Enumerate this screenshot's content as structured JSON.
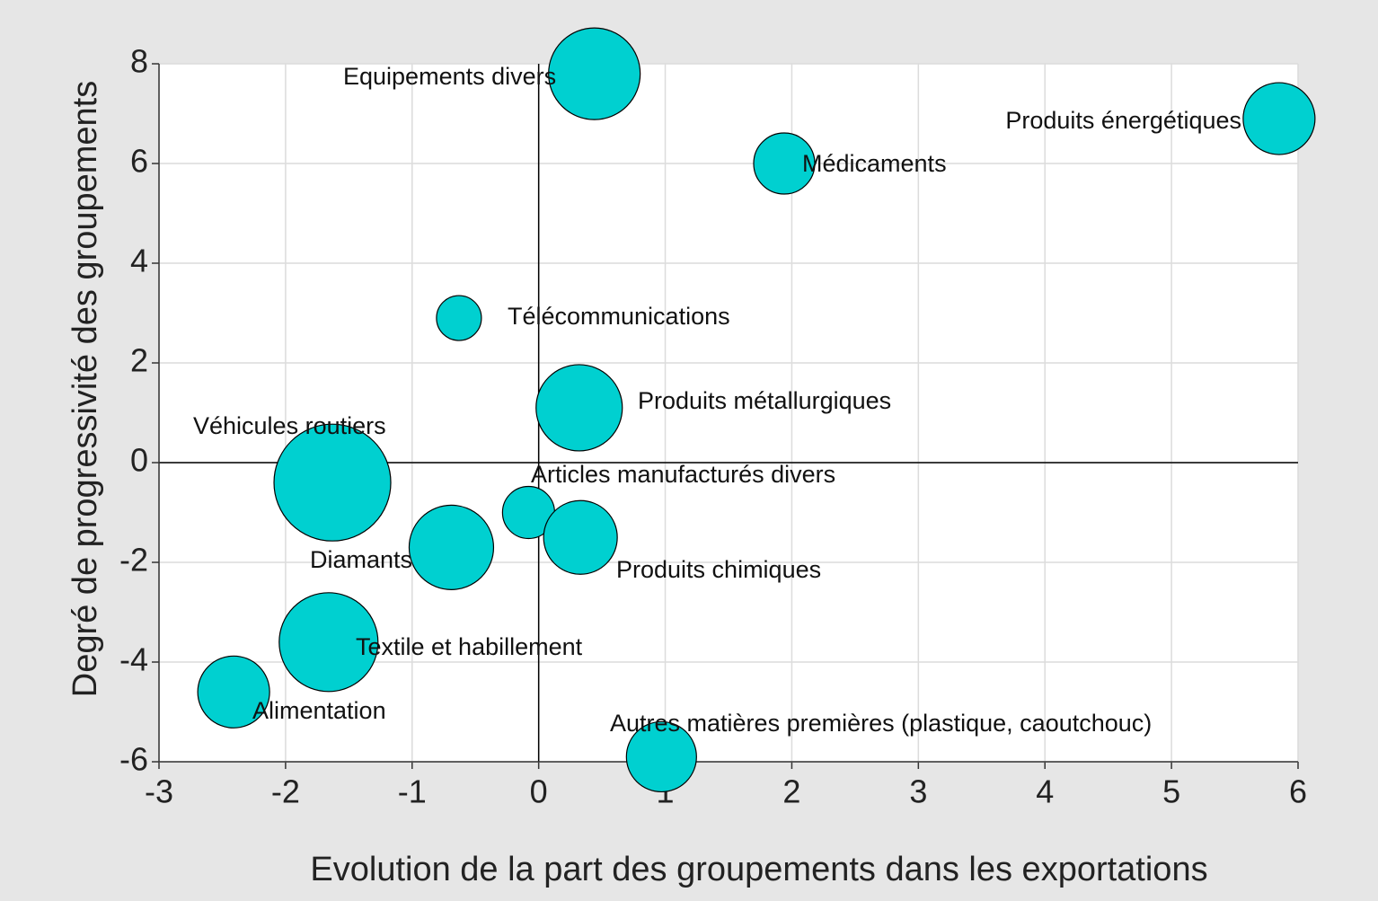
{
  "chart_data": {
    "type": "bubble",
    "x_label": "Evolution de la part des groupements dans les exportations",
    "y_label": "Degré de progressivité des groupements",
    "labels": [
      "Equipements divers",
      "Produits énergétiques",
      "Médicaments",
      "Télécommunications",
      "Produits métallurgiques",
      "Véhicules routiers",
      "Articles manufacturés divers",
      "Produits chimiques",
      "Diamants",
      "Textile et habillement",
      "Alimentation",
      "Autres matières premières (plastique, caoutchouc)"
    ],
    "x": [
      0.44,
      5.85,
      1.94,
      -0.63,
      0.32,
      -1.63,
      -0.08,
      0.33,
      -0.69,
      -1.66,
      -2.41,
      0.97
    ],
    "values": [
      7.8,
      6.9,
      6.0,
      2.9,
      1.1,
      -0.4,
      -1.0,
      -1.5,
      -1.7,
      -3.6,
      -4.6,
      -5.9
    ],
    "sizes": [
      51,
      40,
      34,
      25,
      48,
      65,
      29,
      41,
      47,
      55,
      40,
      39
    ],
    "color": "#00d0d0",
    "xlim": [
      -3,
      6
    ],
    "xticks": [
      -3,
      -2,
      -1,
      0,
      1,
      2,
      3,
      4,
      5,
      6
    ],
    "ylim": [
      -6,
      8
    ],
    "yticks": [
      -6,
      -4,
      -2,
      0,
      2,
      4,
      6,
      8
    ],
    "grid": true
  }
}
